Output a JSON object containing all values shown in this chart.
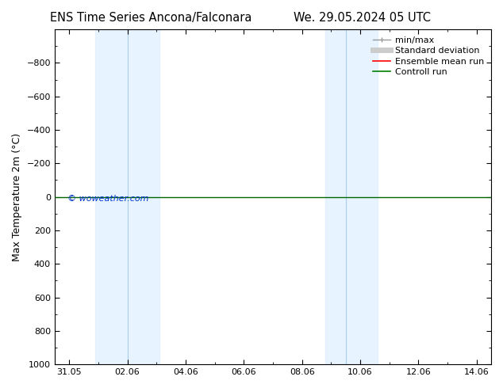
{
  "title_left": "ENS Time Series Ancona/Falconara",
  "title_right": "We. 29.05.2024 05 UTC",
  "ylabel": "Max Temperature 2m (°C)",
  "watermark": "© woweather.com",
  "watermark_color": "#0033cc",
  "background_color": "#ffffff",
  "plot_bg_color": "#ffffff",
  "ylim_bottom": 1000,
  "ylim_top": -1000,
  "yticks": [
    -800,
    -600,
    -400,
    -200,
    0,
    200,
    400,
    600,
    800,
    1000
  ],
  "xmin": 30.45,
  "xmax": 14.55,
  "xtick_labels": [
    "31.05",
    "02.06",
    "04.06",
    "06.06",
    "08.06",
    "10.06",
    "12.06",
    "14.06"
  ],
  "xtick_positions": [
    0,
    2,
    4,
    6,
    8,
    10,
    12,
    14
  ],
  "shade_bands": [
    {
      "xmin": 1.0,
      "xmax": 2.0,
      "divider": 1.5
    },
    {
      "xmin": 2.0,
      "xmax": 3.5,
      "divider": null
    },
    {
      "xmin": 8.5,
      "xmax": 9.5,
      "divider": null
    },
    {
      "xmin": 9.5,
      "xmax": 10.5,
      "divider": 9.5
    }
  ],
  "shade_color": "#ddeeff",
  "shade_alpha": 0.7,
  "divider_color": "#aaccee",
  "green_line_y": 0,
  "green_line_color": "#006600",
  "legend_items": [
    {
      "label": "min/max",
      "color": "#999999",
      "lw": 1
    },
    {
      "label": "Standard deviation",
      "color": "#cccccc",
      "lw": 5
    },
    {
      "label": "Ensemble mean run",
      "color": "#ff0000",
      "lw": 1.2
    },
    {
      "label": "Controll run",
      "color": "#008000",
      "lw": 1.2
    }
  ],
  "title_fontsize": 10.5,
  "axis_fontsize": 9,
  "tick_fontsize": 8,
  "legend_fontsize": 8
}
